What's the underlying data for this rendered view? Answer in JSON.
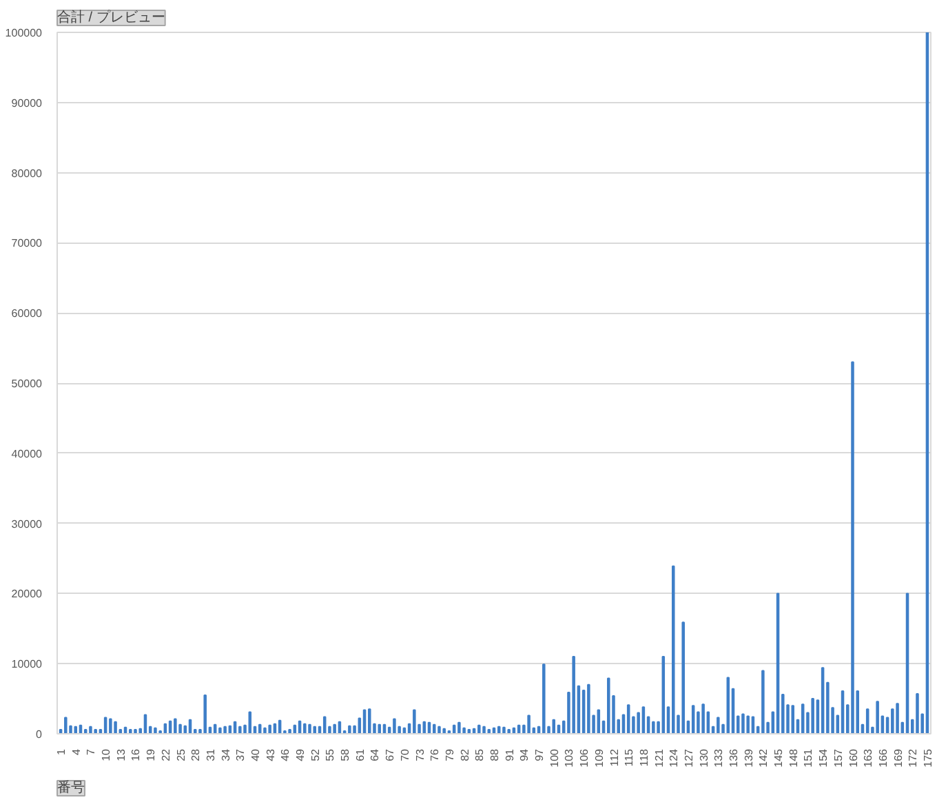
{
  "chart_data": {
    "type": "bar",
    "title": "合計 / プレビュー",
    "xlabel": "番号",
    "categories": [
      "1",
      null,
      null,
      "4",
      null,
      null,
      "7",
      null,
      null,
      "10",
      null,
      null,
      "13",
      null,
      null,
      "16",
      null,
      null,
      "19",
      null,
      null,
      "22",
      null,
      null,
      "25",
      null,
      null,
      "28",
      null,
      null,
      "31",
      null,
      null,
      "34",
      null,
      null,
      "37",
      null,
      null,
      "40",
      null,
      null,
      "43",
      null,
      null,
      "46",
      null,
      null,
      "49",
      null,
      null,
      "52",
      null,
      null,
      "55",
      null,
      null,
      "58",
      null,
      null,
      "61",
      null,
      null,
      "64",
      null,
      null,
      "67",
      null,
      null,
      "70",
      null,
      null,
      "73",
      null,
      null,
      "76",
      null,
      null,
      "79",
      null,
      null,
      "82",
      null,
      null,
      "85",
      null,
      null,
      "88",
      null,
      null,
      "91",
      null,
      null,
      "94",
      null,
      null,
      "97",
      null,
      null,
      "100",
      null,
      null,
      "103",
      null,
      null,
      "106",
      null,
      null,
      "109",
      null,
      null,
      "112",
      null,
      null,
      "115",
      null,
      null,
      "118",
      null,
      null,
      "121",
      null,
      null,
      "124",
      null,
      null,
      "127",
      null,
      null,
      "130",
      null,
      null,
      "133",
      null,
      null,
      "136",
      null,
      null,
      "139",
      null,
      null,
      "142",
      null,
      null,
      "145",
      null,
      null,
      "148",
      null,
      null,
      "151",
      null,
      null,
      "154",
      null,
      null,
      "157",
      null,
      null,
      "160",
      null,
      null,
      "163",
      null,
      null,
      "166",
      null,
      null,
      "169",
      null,
      null,
      "172",
      null,
      null,
      "175"
    ],
    "values": [
      600,
      2300,
      1100,
      1000,
      1200,
      600,
      1000,
      600,
      600,
      2300,
      2100,
      1700,
      600,
      900,
      600,
      600,
      700,
      2700,
      1000,
      800,
      400,
      1400,
      1800,
      2100,
      1300,
      1100,
      2000,
      600,
      600,
      5500,
      900,
      1300,
      800,
      1000,
      1100,
      1700,
      1000,
      1200,
      3100,
      1000,
      1300,
      800,
      1200,
      1400,
      1900,
      400,
      600,
      1200,
      1800,
      1400,
      1300,
      1000,
      1000,
      2400,
      1000,
      1300,
      1700,
      400,
      1100,
      1100,
      2200,
      3400,
      3500,
      1400,
      1300,
      1300,
      900,
      2100,
      1000,
      800,
      1400,
      3400,
      1300,
      1700,
      1600,
      1300,
      1000,
      700,
      400,
      1200,
      1600,
      800,
      600,
      700,
      1200,
      1000,
      600,
      800,
      1000,
      900,
      600,
      800,
      1200,
      1200,
      2600,
      800,
      1000,
      9900,
      1000,
      2000,
      1200,
      1800,
      5900,
      11000,
      6800,
      6200,
      7000,
      2600,
      3400,
      1800,
      7900,
      5400,
      2000,
      2700,
      4100,
      2400,
      3000,
      3800,
      2400,
      1700,
      1700,
      11000,
      3800,
      23900,
      2600,
      15900,
      1800,
      4000,
      3100,
      4200,
      3100,
      1000,
      2300,
      1300,
      8000,
      6400,
      2500,
      2800,
      2500,
      2400,
      1000,
      9000,
      1600,
      3100,
      20000,
      5600,
      4100,
      4000,
      2000,
      4200,
      3000,
      5000,
      4800,
      9400,
      7300,
      3700,
      2600,
      6100,
      4100,
      53000,
      6100,
      1300,
      3500,
      900,
      4600,
      2500,
      2300,
      3500,
      4300,
      1600,
      20000,
      2000,
      5700,
      2800,
      100000
    ],
    "color": "#3f7fc8",
    "ylim": [
      0,
      100000
    ],
    "yticks": [
      0,
      10000,
      20000,
      30000,
      40000,
      50000,
      60000,
      70000,
      80000,
      90000,
      100000
    ],
    "grid": "y"
  }
}
